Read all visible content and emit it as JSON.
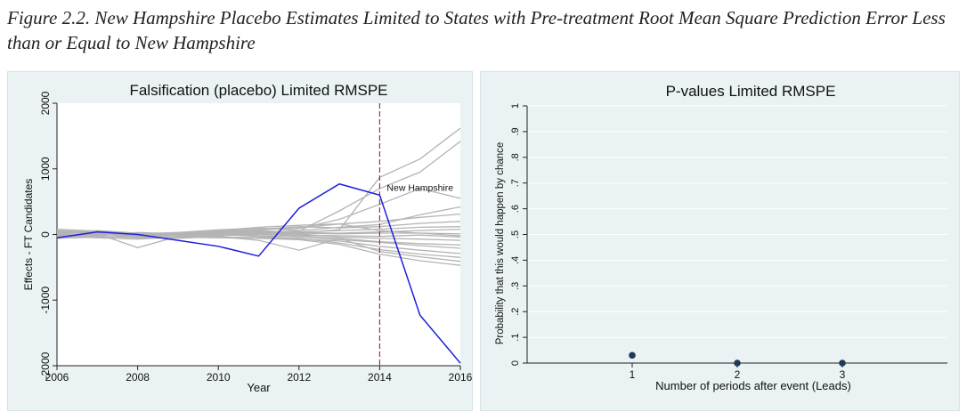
{
  "caption": "Figure 2.2. New Hampshire Placebo Estimates Limited to States with Pre-treatment Root Mean Square Prediction Error Less than or Equal to New Hampshire",
  "colors": {
    "panel_bg": "#eaf2f3",
    "plot_bg": "#ffffff",
    "treated": "#1f1fdd",
    "placebo": "#b4b4b4",
    "event_line": "#9c1f3c",
    "dot": "#1c3a5c",
    "grid": "#e3eced"
  },
  "chart_data": [
    {
      "type": "line",
      "title": "Falsification (placebo) Limited RMSPE",
      "xlabel": "Year",
      "ylabel": "Effects - FT Candidates",
      "xlim": [
        2006,
        2016
      ],
      "ylim": [
        -2000,
        2000
      ],
      "xticks": [
        2006,
        2008,
        2010,
        2012,
        2014,
        2016
      ],
      "yticks": [
        -2000,
        -1000,
        0,
        1000,
        2000
      ],
      "event_x": 2014,
      "treated_label": "New Hampshire",
      "x": [
        2006,
        2007,
        2008,
        2009,
        2010,
        2011,
        2012,
        2013,
        2014,
        2015,
        2016
      ],
      "treated": [
        -50,
        40,
        0,
        -90,
        -180,
        -330,
        400,
        770,
        600,
        -1230,
        -1960
      ],
      "placebos": [
        [
          80,
          50,
          -20,
          10,
          40,
          60,
          30,
          70,
          870,
          1150,
          1620
        ],
        [
          60,
          30,
          -40,
          0,
          20,
          40,
          50,
          360,
          700,
          950,
          1420
        ],
        [
          -30,
          -10,
          0,
          30,
          60,
          80,
          90,
          230,
          460,
          700,
          550
        ],
        [
          20,
          40,
          10,
          30,
          70,
          100,
          60,
          110,
          150,
          300,
          420
        ],
        [
          0,
          -20,
          30,
          10,
          50,
          70,
          100,
          160,
          200,
          260,
          310
        ],
        [
          40,
          20,
          -10,
          20,
          40,
          80,
          120,
          100,
          120,
          170,
          200
        ],
        [
          -10,
          10,
          -30,
          -20,
          10,
          30,
          40,
          60,
          80,
          110,
          120
        ],
        [
          30,
          60,
          20,
          10,
          30,
          50,
          30,
          20,
          40,
          60,
          80
        ],
        [
          10,
          0,
          -20,
          0,
          20,
          40,
          20,
          10,
          20,
          20,
          10
        ],
        [
          -20,
          20,
          0,
          -10,
          -20,
          10,
          -10,
          -20,
          -30,
          -10,
          -40
        ],
        [
          50,
          30,
          10,
          -20,
          -10,
          20,
          10,
          -40,
          -60,
          -70,
          -90
        ],
        [
          -40,
          -30,
          -50,
          -40,
          -20,
          0,
          -20,
          -60,
          -110,
          -140,
          -160
        ],
        [
          20,
          40,
          -10,
          10,
          30,
          -20,
          -40,
          -80,
          -120,
          -170,
          -210
        ],
        [
          -60,
          -40,
          -20,
          10,
          0,
          -30,
          -70,
          -100,
          -180,
          -240,
          -290
        ],
        [
          0,
          10,
          -200,
          -30,
          -40,
          -50,
          -60,
          -130,
          -230,
          -300,
          -350
        ],
        [
          30,
          20,
          -40,
          -60,
          -30,
          -90,
          -240,
          -60,
          -260,
          -340,
          -410
        ],
        [
          -20,
          -50,
          -70,
          -40,
          -50,
          -60,
          -80,
          -150,
          -300,
          -400,
          -470
        ],
        [
          60,
          40,
          20,
          0,
          60,
          110,
          140,
          160,
          60,
          20,
          -20
        ]
      ]
    },
    {
      "type": "scatter",
      "title": "P-values Limited RMSPE",
      "xlabel": "Number of periods after event (Leads)",
      "ylabel": "Probability that this would happen by chance",
      "xlim": [
        0,
        4
      ],
      "ylim": [
        0,
        1
      ],
      "xticks": [
        1,
        2,
        3
      ],
      "yticks": [
        0,
        0.1,
        0.2,
        0.3,
        0.4,
        0.5,
        0.6,
        0.7,
        0.8,
        0.9,
        1
      ],
      "ytick_labels": [
        "0",
        ".1",
        ".2",
        ".3",
        ".4",
        ".5",
        ".6",
        ".7",
        ".8",
        ".9",
        "1"
      ],
      "x": [
        1,
        2,
        3
      ],
      "y": [
        0.03,
        0,
        0
      ]
    }
  ]
}
